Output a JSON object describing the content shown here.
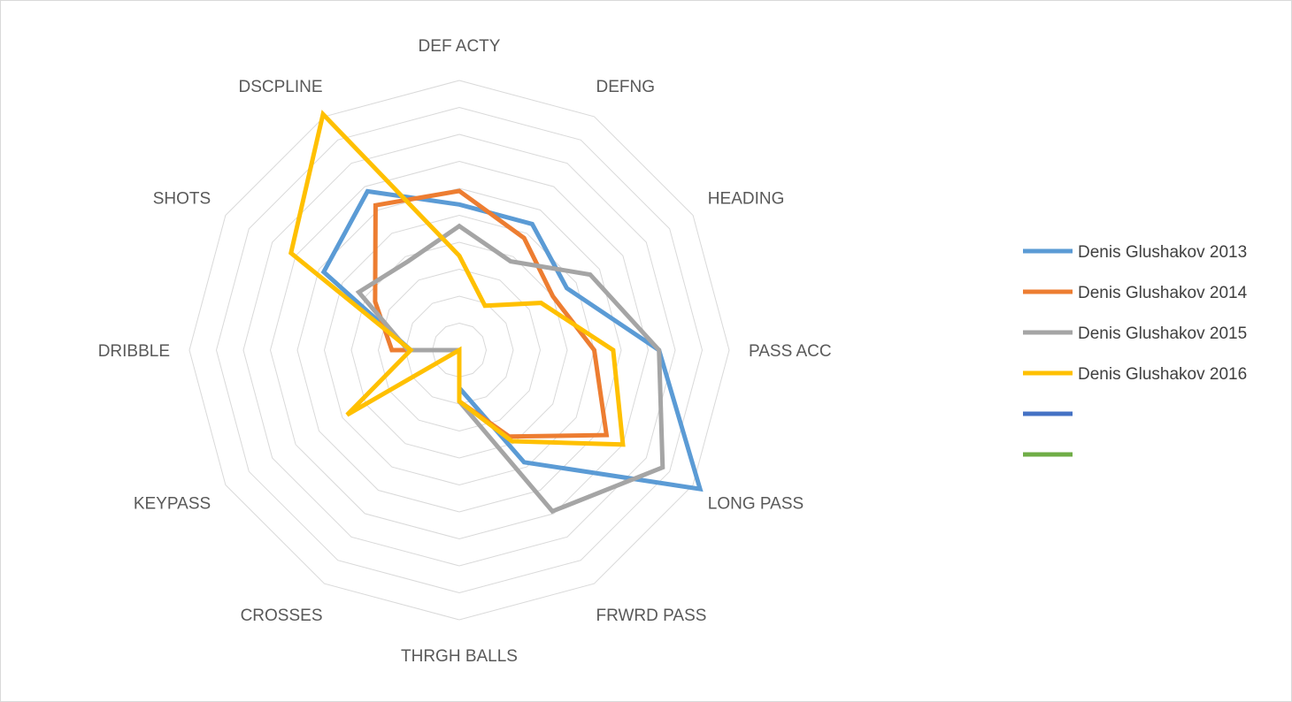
{
  "chart_data": {
    "type": "radar",
    "axes": [
      "DEF ACTY",
      "DEFNG",
      "HEADING",
      "PASS ACC",
      "LONG PASS",
      "FRWRD PASS",
      "THRGH BALLS",
      "CROSSES",
      "KEYPASS",
      "DRIBBLE",
      "SHOTS",
      "DSCPLINE"
    ],
    "rmin": 0,
    "rmax": 10,
    "gridlines": true,
    "legend_position": "right",
    "series": [
      {
        "name": "Denis Glushakov 2013",
        "color": "#5b9bd5",
        "values": [
          5.4,
          5.4,
          4.6,
          7.4,
          10.3,
          4.8,
          1.4,
          0,
          0,
          1.8,
          5.8,
          6.8
        ]
      },
      {
        "name": "Denis Glushakov 2014",
        "color": "#ed7d31",
        "values": [
          5.9,
          4.8,
          4.0,
          5.0,
          6.3,
          3.7,
          1.9,
          0,
          0,
          2.5,
          3.6,
          6.2
        ]
      },
      {
        "name": "Denis Glushakov 2015",
        "color": "#a5a5a5",
        "values": [
          4.6,
          3.8,
          5.6,
          7.4,
          8.7,
          6.9,
          1.9,
          0,
          0,
          1.9,
          4.3,
          3.8
        ]
      },
      {
        "name": "Denis Glushakov 2016",
        "color": "#ffc000",
        "values": [
          3.5,
          1.9,
          3.5,
          5.7,
          7.0,
          3.9,
          1.9,
          0,
          4.8,
          1.8,
          7.2,
          10.1
        ]
      },
      {
        "name": "",
        "color": "#4472c4",
        "values": []
      },
      {
        "name": "",
        "color": "#70ad47",
        "values": []
      }
    ]
  }
}
